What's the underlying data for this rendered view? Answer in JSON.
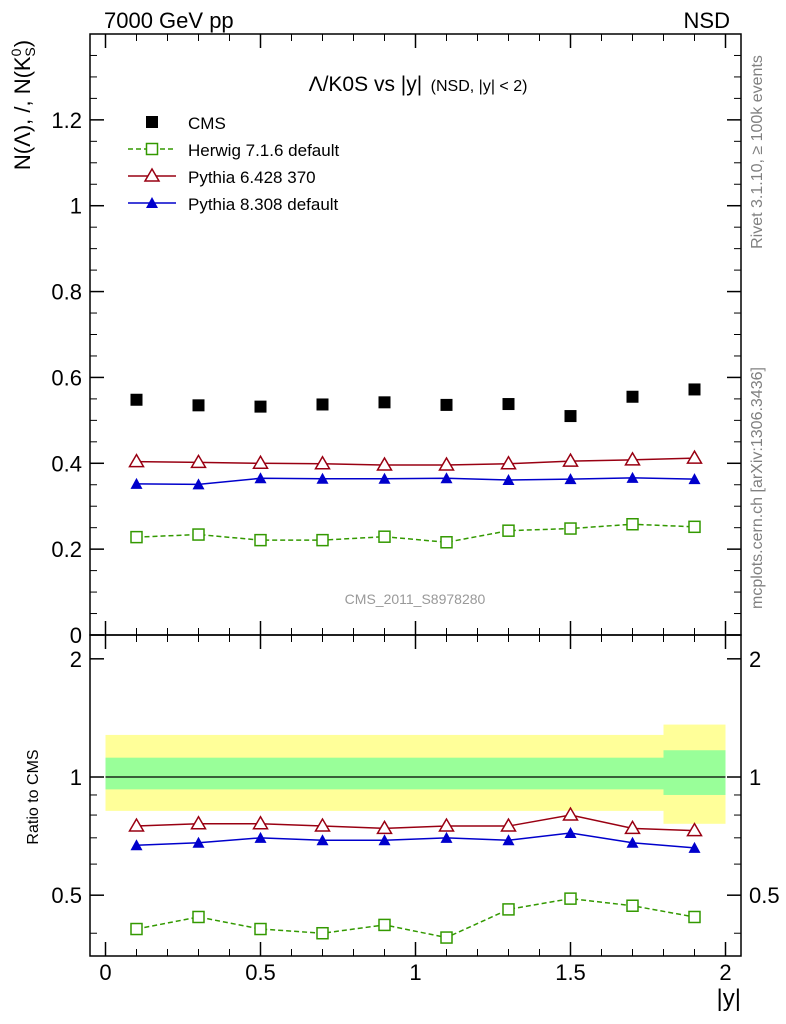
{
  "header": {
    "left": "7000 GeV pp",
    "right": "NSD"
  },
  "side_labels": {
    "rivet": "Rivet 3.1.10, ≥ 100k events",
    "mcplots": "mcplots.cern.ch [arXiv:1306.3436]"
  },
  "watermark": "CMS_2011_S8978280",
  "colors": {
    "CMS": "#000000",
    "Herwig": "#339900",
    "Pythia6": "#990012",
    "Pythia8": "#0000cc",
    "band_inner": "#99ff99",
    "band_outer": "#ffff99"
  },
  "chart_data": [
    {
      "panel": "main",
      "type": "scatter",
      "title_main": "Λ/K0S vs |y|",
      "title_sub": "(NSD, |y| < 2)",
      "ylabel": "N(Λ), /, N(K⁰S)",
      "ylabel_parts": {
        "a": "N(Λ), /, N(K",
        "sup": "0",
        "sub": "S",
        "b": ")"
      },
      "xlim": [
        -0.05,
        2.05
      ],
      "ylim": [
        0,
        1.4
      ],
      "yticks": [
        0,
        0.2,
        0.4,
        0.6,
        0.8,
        1,
        1.2
      ],
      "ytick_labels": [
        "0",
        "0.2",
        "0.4",
        "0.6",
        "0.8",
        "1",
        "1.2"
      ],
      "x": [
        0.1,
        0.3,
        0.5,
        0.7,
        0.9,
        1.1,
        1.3,
        1.5,
        1.7,
        1.9
      ],
      "legend_position": "top-left",
      "series": [
        {
          "name": "CMS",
          "key": "CMS",
          "marker": "square-filled",
          "values": [
            0.548,
            0.535,
            0.532,
            0.537,
            0.542,
            0.536,
            0.538,
            0.51,
            0.555,
            0.572
          ]
        },
        {
          "name": "Herwig 7.1.6 default",
          "key": "Herwig",
          "marker": "square-open",
          "dashed": true,
          "values": [
            0.228,
            0.234,
            0.221,
            0.221,
            0.229,
            0.216,
            0.243,
            0.248,
            0.258,
            0.252
          ]
        },
        {
          "name": "Pythia 6.428 370",
          "key": "Pythia6",
          "marker": "triangle-open",
          "values": [
            0.404,
            0.402,
            0.4,
            0.399,
            0.396,
            0.396,
            0.399,
            0.405,
            0.408,
            0.412
          ]
        },
        {
          "name": "Pythia 8.308 default",
          "key": "Pythia8",
          "marker": "triangle-filled",
          "values": [
            0.352,
            0.351,
            0.365,
            0.364,
            0.364,
            0.365,
            0.361,
            0.363,
            0.366,
            0.363
          ]
        }
      ]
    },
    {
      "panel": "ratio",
      "type": "line",
      "ylabel": "Ratio to CMS",
      "xlabel": "|y|",
      "xlim": [
        -0.05,
        2.05
      ],
      "ylim": [
        0.35,
        2.3
      ],
      "xticks": [
        0,
        0.5,
        1,
        1.5,
        2
      ],
      "xtick_labels": [
        "0",
        "0.5",
        "1",
        "1.5",
        "2"
      ],
      "yticks": [
        0.5,
        1,
        2
      ],
      "ytick_labels": [
        "0.5",
        "1",
        "2"
      ],
      "x": [
        0.1,
        0.3,
        0.5,
        0.7,
        0.9,
        1.1,
        1.3,
        1.5,
        1.7,
        1.9
      ],
      "bands": [
        {
          "x_from": 0.0,
          "x_to": 1.8,
          "outer": [
            0.82,
            1.28
          ],
          "inner": [
            0.93,
            1.12
          ]
        },
        {
          "x_from": 1.8,
          "x_to": 2.0,
          "outer": [
            0.76,
            1.36
          ],
          "inner": [
            0.9,
            1.17
          ]
        }
      ],
      "series": [
        {
          "name": "Herwig 7.1.6 default",
          "key": "Herwig",
          "marker": "square-open",
          "dashed": true,
          "values": [
            0.41,
            0.44,
            0.41,
            0.4,
            0.42,
            0.39,
            0.46,
            0.49,
            0.47,
            0.44
          ]
        },
        {
          "name": "Pythia 6.428 370",
          "key": "Pythia6",
          "marker": "triangle-open",
          "values": [
            0.75,
            0.76,
            0.76,
            0.75,
            0.74,
            0.75,
            0.75,
            0.8,
            0.74,
            0.73
          ]
        },
        {
          "name": "Pythia 8.308 default",
          "key": "Pythia8",
          "marker": "triangle-filled",
          "values": [
            0.67,
            0.68,
            0.7,
            0.69,
            0.69,
            0.7,
            0.69,
            0.72,
            0.68,
            0.66
          ]
        }
      ]
    }
  ]
}
